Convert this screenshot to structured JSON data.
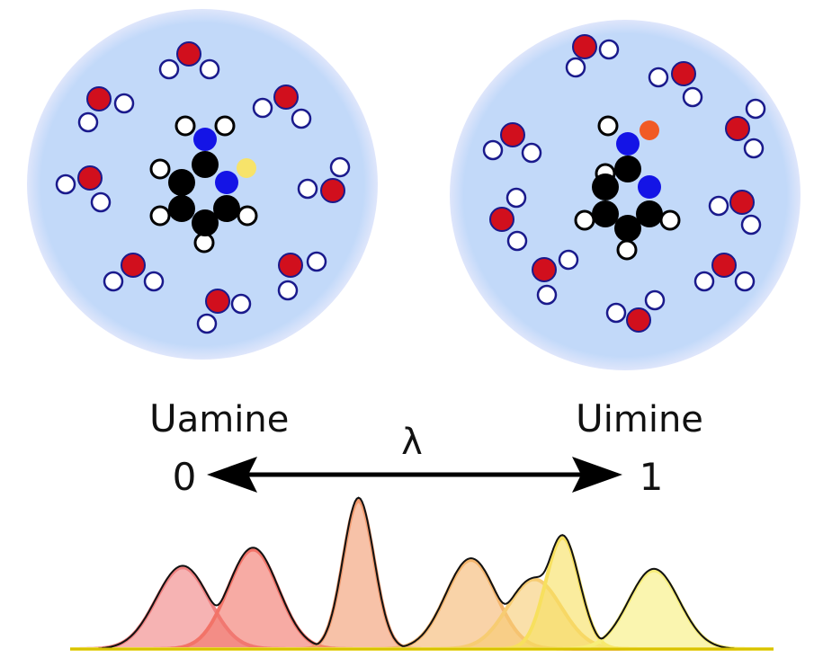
{
  "labels": {
    "left_state": "U",
    "left_state_sub": "amine",
    "right_state": "U",
    "right_state_sub": "imine",
    "lambda": "λ",
    "lambda_start": "0",
    "lambda_end": "1"
  },
  "colors": {
    "solvent_bg": "#c2d9f9",
    "oxygen": "#d10f1d",
    "hydrogen": "#ffffff",
    "carbon": "#000000",
    "nitrogen": "#1414e6",
    "proton_amine": "#f7e36a",
    "proton_imine": "#f15a24",
    "envelope": "#111111",
    "baseline": "#d8c200"
  },
  "distributions": [
    {
      "center": 0.16,
      "width": 0.038,
      "height": 0.55,
      "color": "#f08080"
    },
    {
      "center": 0.26,
      "width": 0.036,
      "height": 0.67,
      "color": "#f27368"
    },
    {
      "center": 0.41,
      "width": 0.022,
      "height": 1.0,
      "color": "#f29a6e"
    },
    {
      "center": 0.57,
      "width": 0.036,
      "height": 0.6,
      "color": "#f5b66e"
    },
    {
      "center": 0.66,
      "width": 0.038,
      "height": 0.47,
      "color": "#f7cc72"
    },
    {
      "center": 0.7,
      "width": 0.024,
      "height": 0.75,
      "color": "#f7e05e"
    },
    {
      "center": 0.83,
      "width": 0.036,
      "height": 0.53,
      "color": "#f7ee7a"
    }
  ]
}
